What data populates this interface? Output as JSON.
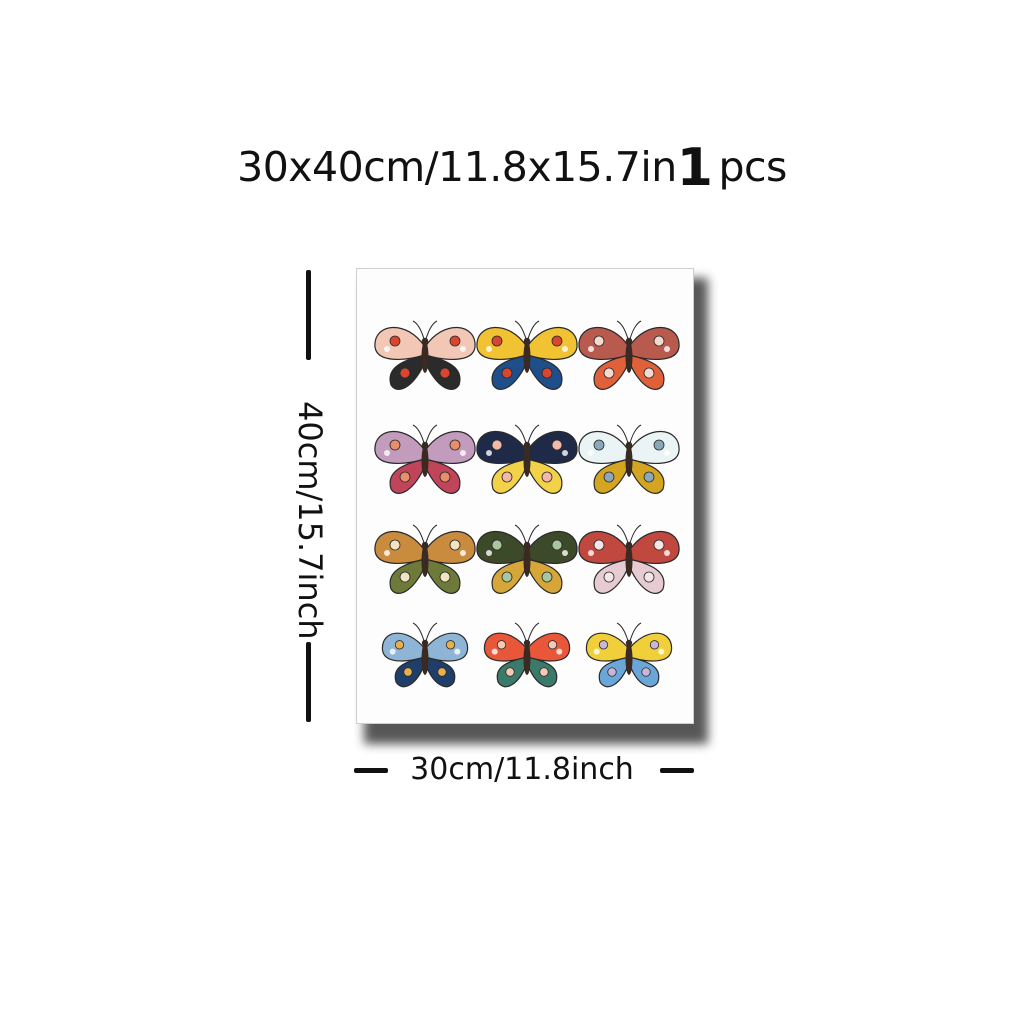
{
  "headline": {
    "size_text": "30x40cm/11.8x15.7in",
    "quantity": "1",
    "unit": "pcs"
  },
  "dimensions": {
    "height_label": "40cm/15.7inch",
    "width_label": "30cm/11.8inch"
  },
  "canvas": {
    "artwork": "butterfly-illustration-grid",
    "rows": [
      [
        {
          "name": "butterfly-1",
          "wing": "#f2c7b6",
          "accent": "#2b2b2b",
          "spot": "#d9452e"
        },
        {
          "name": "butterfly-2",
          "wing": "#f1c232",
          "accent": "#1f4f8a",
          "spot": "#d9452e"
        },
        {
          "name": "butterfly-3",
          "wing": "#b95a4f",
          "accent": "#e0603a",
          "spot": "#f4d9cf"
        }
      ],
      [
        {
          "name": "butterfly-4",
          "wing": "#c39bbd",
          "accent": "#c0445a",
          "spot": "#e88f6a"
        },
        {
          "name": "butterfly-5",
          "wing": "#1e2a48",
          "accent": "#f3d24a",
          "spot": "#f2b9a8"
        },
        {
          "name": "butterfly-6",
          "wing": "#eaf4f4",
          "accent": "#d4a520",
          "spot": "#8aa8b8"
        }
      ],
      [
        {
          "name": "butterfly-7",
          "wing": "#c98b3e",
          "accent": "#6d7a3a",
          "spot": "#f2e3c2"
        },
        {
          "name": "butterfly-8",
          "wing": "#3d4a2a",
          "accent": "#d6a738",
          "spot": "#a8c7a0"
        },
        {
          "name": "butterfly-9",
          "wing": "#c0483f",
          "accent": "#e7cbd3",
          "spot": "#f4e6e6"
        }
      ],
      [
        {
          "name": "butterfly-10",
          "wing": "#8fb5d6",
          "accent": "#1f3f6a",
          "spot": "#e7b04a"
        },
        {
          "name": "butterfly-11",
          "wing": "#e8573a",
          "accent": "#3a7a6a",
          "spot": "#f6c9b2"
        },
        {
          "name": "butterfly-12",
          "wing": "#f1cf3a",
          "accent": "#6aa7d8",
          "spot": "#c9b6d9"
        }
      ]
    ]
  }
}
